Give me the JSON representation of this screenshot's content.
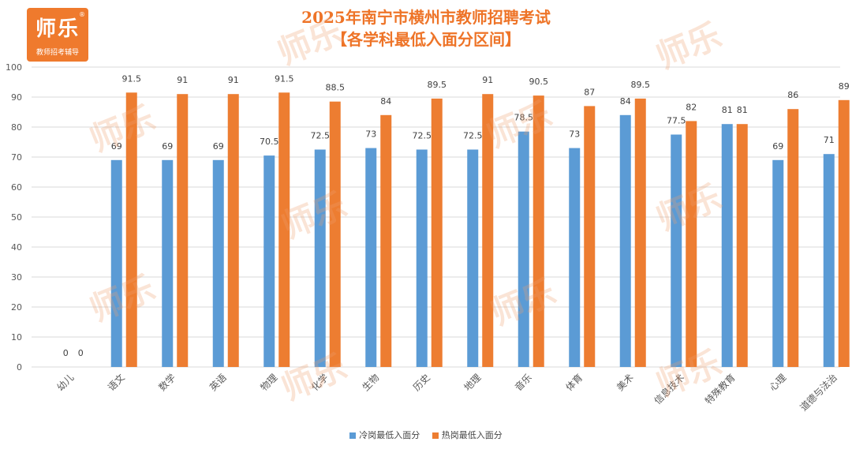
{
  "logo": {
    "main": "师乐",
    "sub": "教师招考辅导",
    "reg": "®"
  },
  "header": {
    "title_line1": "2025年南宁市横州市教师招聘考试",
    "title_line2": "【各学科最低入面分区间】"
  },
  "watermark": "师乐",
  "colors": {
    "cold": "#5b9bd5",
    "hot": "#ed7d31",
    "grid": "#d9d9d9",
    "axis_text": "#595959"
  },
  "chart_data": {
    "type": "bar",
    "title": "2025年南宁市横州市教师招聘考试【各学科最低入面分区间】",
    "categories": [
      "幼儿",
      "语文",
      "数学",
      "英语",
      "物理",
      "化学",
      "生物",
      "历史",
      "地理",
      "音乐",
      "体育",
      "美术",
      "信息技术",
      "特殊教育",
      "心理",
      "道德与法治"
    ],
    "series": [
      {
        "name": "冷岗最低入面分",
        "values": [
          0,
          69,
          69,
          69,
          70.5,
          72.5,
          73,
          72.5,
          72.5,
          78.5,
          73,
          84,
          77.5,
          81,
          69,
          71
        ]
      },
      {
        "name": "热岗最低入面分",
        "values": [
          0,
          91.5,
          91,
          91,
          91.5,
          88.5,
          84,
          89.5,
          91,
          90.5,
          87,
          89.5,
          82,
          81,
          86,
          89
        ]
      }
    ],
    "ylim": [
      0,
      100
    ],
    "yticks": [
      0,
      10,
      20,
      30,
      40,
      50,
      60,
      70,
      80,
      90,
      100
    ],
    "xlabel": "",
    "ylabel": "",
    "grid": true,
    "legend": "bottom-center"
  }
}
